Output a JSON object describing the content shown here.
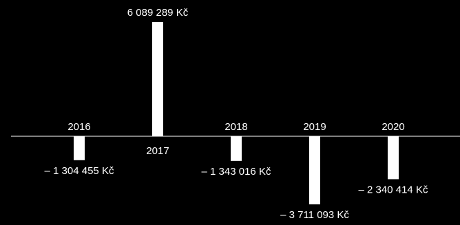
{
  "chart_data": {
    "type": "bar",
    "categories": [
      "2016",
      "2017",
      "2018",
      "2019",
      "2020"
    ],
    "values": [
      -1304455,
      6089289,
      -1343016,
      -3711093,
      -2340414
    ],
    "value_labels": [
      "– 1 304 455 Kč",
      "6 089 289 Kč",
      "– 1 343 016 Kč",
      "– 3 711 093 Kč",
      "– 2 340 414 Kč"
    ],
    "ylim": [
      -3711093,
      6089289
    ],
    "grid": false,
    "legend": "none",
    "colors": {
      "background": "#000000",
      "bar": "#ffffff",
      "axis": "#ffffff",
      "text": "#ffffff"
    }
  }
}
